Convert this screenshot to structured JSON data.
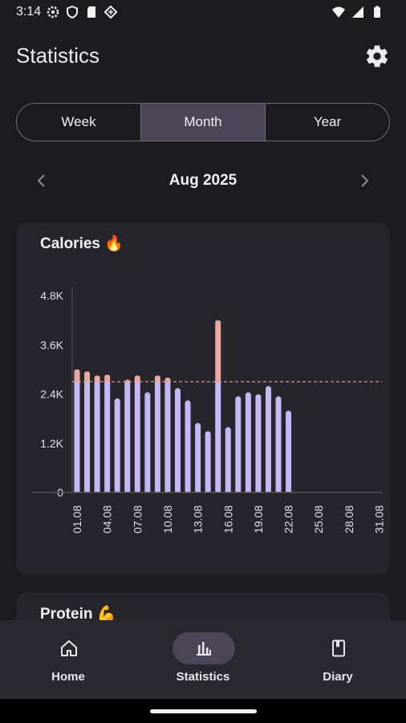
{
  "status_bar": {
    "time": "3:14",
    "left_icons": [
      "settings-icon",
      "shield-icon",
      "sd-card-icon",
      "app-icon"
    ],
    "right_icons": [
      "wifi-icon",
      "signal-icon",
      "battery-icon"
    ]
  },
  "header": {
    "title": "Statistics",
    "settings_icon": "gear-icon"
  },
  "period_tabs": [
    {
      "label": "Week",
      "selected": false
    },
    {
      "label": "Month",
      "selected": true
    },
    {
      "label": "Year",
      "selected": false
    }
  ],
  "month_nav": {
    "label": "Aug 2025",
    "prev_icon": "chevron-left-icon",
    "next_icon": "chevron-right-icon"
  },
  "calories_card": {
    "title": "Calories 🔥"
  },
  "protein_card": {
    "title": "Protein 💪"
  },
  "chart_data": {
    "type": "bar",
    "title": "Calories 🔥",
    "y_ticks": [
      "0",
      "1.2K",
      "2.4K",
      "3.6K",
      "4.8K"
    ],
    "ylim": [
      0,
      4800
    ],
    "goal": 2700,
    "x_tick_labels": [
      "01.08",
      "04.08",
      "07.08",
      "10.08",
      "13.08",
      "16.08",
      "19.08",
      "22.08",
      "25.08",
      "28.08",
      "31.08"
    ],
    "categories": [
      "01.08",
      "02.08",
      "03.08",
      "04.08",
      "05.08",
      "06.08",
      "07.08",
      "08.08",
      "09.08",
      "10.08",
      "11.08",
      "12.08",
      "13.08",
      "14.08",
      "15.08",
      "16.08",
      "17.08",
      "18.08",
      "19.08",
      "20.08",
      "21.08",
      "22.08",
      "23.08",
      "24.08",
      "25.08",
      "26.08",
      "27.08",
      "28.08",
      "29.08",
      "30.08",
      "31.08"
    ],
    "values": [
      3000,
      2950,
      2850,
      2870,
      2250,
      2750,
      2850,
      2400,
      2850,
      2800,
      2500,
      2200,
      1650,
      1450,
      4200,
      1550,
      2300,
      2400,
      2350,
      2550,
      2300,
      1950,
      0,
      0,
      0,
      0,
      0,
      0,
      0,
      0,
      0
    ],
    "colors": {
      "bar": "#c6b8f5",
      "over_goal": "#e8a9a2",
      "goal_line": "#e8a9a2"
    },
    "grid": false
  },
  "bottom_nav": [
    {
      "label": "Home",
      "icon": "home-icon",
      "selected": false
    },
    {
      "label": "Statistics",
      "icon": "bar-chart-icon",
      "selected": true
    },
    {
      "label": "Diary",
      "icon": "book-icon",
      "selected": false
    }
  ]
}
